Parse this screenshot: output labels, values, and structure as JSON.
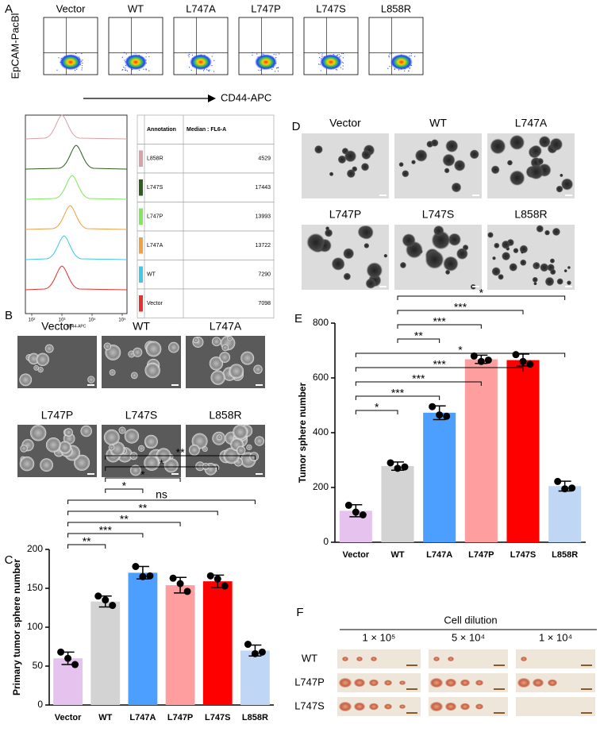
{
  "panel_labels": [
    "A",
    "B",
    "C",
    "D",
    "E",
    "F"
  ],
  "panel_a": {
    "plots": [
      "Vector",
      "WT",
      "L747A",
      "L747P",
      "L747S",
      "L858R"
    ],
    "y_label": "EpCAM-PacBl",
    "x_label": "CD44-APC",
    "histogram": {
      "x_label": "CD44-APC",
      "xticks": [
        "10²",
        "10³",
        "10⁴",
        "10⁵"
      ]
    },
    "table": {
      "headers": [
        "Annotation",
        "Median : FL6-A"
      ],
      "rows": [
        [
          "L858R",
          "4529"
        ],
        [
          "L747S",
          "17443"
        ],
        [
          "L747P",
          "13993"
        ],
        [
          "L747A",
          "13722"
        ],
        [
          "WT",
          "7290"
        ],
        [
          "Vector",
          "7098"
        ]
      ],
      "colors": [
        "#d8a0a8",
        "#2e5e1a",
        "#7ee85a",
        "#f0a040",
        "#40c8e8",
        "#e83030"
      ]
    }
  },
  "panel_b": {
    "images": [
      "Vector",
      "WT",
      "L747A",
      "L747P",
      "L747S",
      "L858R"
    ]
  },
  "panel_d": {
    "images": [
      "Vector",
      "WT",
      "L747A",
      "L747P",
      "L747S",
      "L858R"
    ]
  },
  "panel_f": {
    "title": "Cell dilution",
    "dilutions": [
      "1 × 10⁵",
      "5 × 10⁴",
      "1 × 10⁴"
    ],
    "rows": [
      "WT",
      "L747P",
      "L747S"
    ]
  },
  "chart_data": [
    {
      "type": "bar",
      "y_label": "Primary tumor sphere number",
      "categories": [
        "Vector",
        "WT",
        "L747A",
        "L747P",
        "L747S",
        "L858R"
      ],
      "values": [
        60,
        133,
        170,
        154,
        159,
        70
      ],
      "errors": [
        8,
        7,
        8,
        10,
        8,
        7
      ],
      "points": [
        [
          68,
          60,
          52
        ],
        [
          140,
          135,
          128
        ],
        [
          178,
          165,
          166
        ],
        [
          163,
          156,
          146
        ],
        [
          166,
          162,
          153
        ],
        [
          78,
          66,
          68
        ]
      ],
      "colors": [
        "#e6c3ee",
        "#d3d3d3",
        "#4d9fff",
        "#ff9e9e",
        "#ff0000",
        "#bfd7f5"
      ],
      "ylim": [
        0,
        200
      ],
      "yticks": [
        0,
        50,
        100,
        150,
        200
      ],
      "brackets": [
        {
          "pair": [
            "Vector",
            "WT"
          ],
          "label": "**"
        },
        {
          "pair": [
            "Vector",
            "L747A"
          ],
          "label": "***"
        },
        {
          "pair": [
            "Vector",
            "L747P"
          ],
          "label": "**"
        },
        {
          "pair": [
            "Vector",
            "L747S"
          ],
          "label": "**"
        },
        {
          "pair": [
            "Vector",
            "L858R"
          ],
          "label": "ns"
        },
        {
          "pair": [
            "WT",
            "L747A"
          ],
          "label": "*"
        },
        {
          "pair": [
            "WT",
            "L747P"
          ],
          "label": "*"
        },
        {
          "pair": [
            "WT",
            "L747S"
          ],
          "label": "*"
        },
        {
          "pair": [
            "WT",
            "L858R"
          ],
          "label": "**"
        }
      ]
    },
    {
      "type": "bar",
      "y_label": "Tumor sphere number",
      "categories": [
        "Vector",
        "WT",
        "L747A",
        "L747P",
        "L747S",
        "L858R"
      ],
      "values": [
        115,
        278,
        473,
        668,
        665,
        205
      ],
      "errors": [
        22,
        15,
        25,
        15,
        22,
        18
      ],
      "points": [
        [
          135,
          110,
          100
        ],
        [
          290,
          270,
          275
        ],
        [
          495,
          465,
          460
        ],
        [
          680,
          660,
          665
        ],
        [
          685,
          660,
          650
        ],
        [
          222,
          195,
          198
        ]
      ],
      "colors": [
        "#e6c3ee",
        "#d3d3d3",
        "#4d9fff",
        "#ff9e9e",
        "#ff0000",
        "#bfd7f5"
      ],
      "ylim": [
        0,
        800
      ],
      "yticks": [
        0,
        200,
        400,
        600,
        800
      ],
      "brackets": [
        {
          "pair": [
            "Vector",
            "WT"
          ],
          "label": "*"
        },
        {
          "pair": [
            "Vector",
            "L747A"
          ],
          "label": "***"
        },
        {
          "pair": [
            "Vector",
            "L747P"
          ],
          "label": "***"
        },
        {
          "pair": [
            "Vector",
            "L747S"
          ],
          "label": "***"
        },
        {
          "pair": [
            "Vector",
            "L858R"
          ],
          "label": "*"
        },
        {
          "pair": [
            "WT",
            "L747A"
          ],
          "label": "**"
        },
        {
          "pair": [
            "WT",
            "L747P"
          ],
          "label": "***"
        },
        {
          "pair": [
            "WT",
            "L747S"
          ],
          "label": "***"
        },
        {
          "pair": [
            "WT",
            "L858R"
          ],
          "label": "*"
        }
      ]
    }
  ]
}
